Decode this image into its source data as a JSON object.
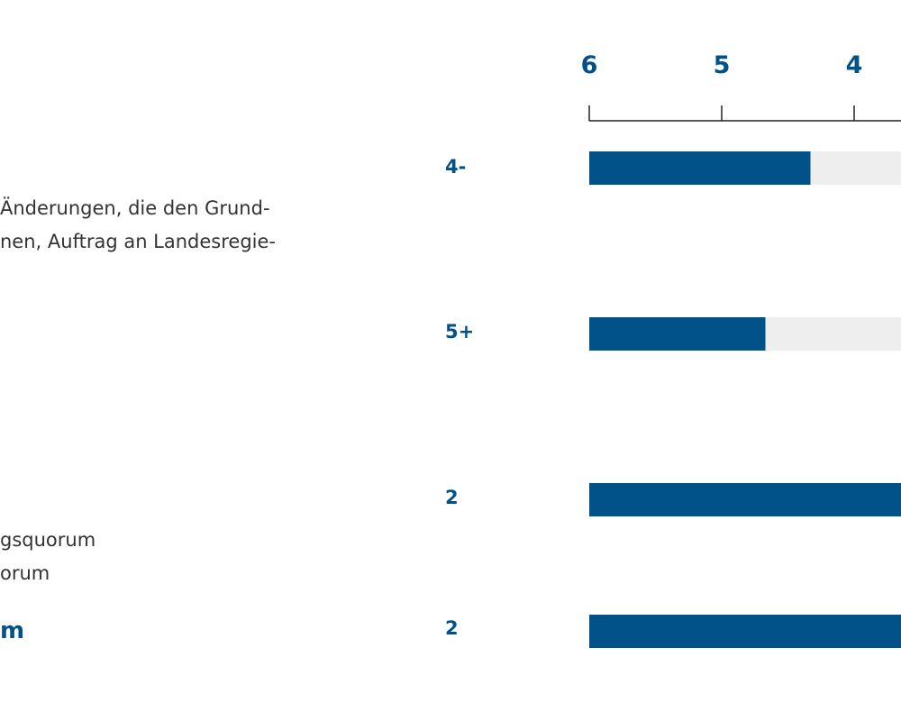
{
  "rows": [
    {
      "grade": "4-",
      "description": [
        "Änderungen, die den Grund-",
        "nen, Auftrag an Landesregie-"
      ]
    },
    {
      "grade": "5+",
      "description": []
    },
    {
      "grade": "2",
      "description": [
        "gsquorum",
        "orum"
      ]
    },
    {
      "grade": "2",
      "description": [
        "m"
      ],
      "is_summary": true
    }
  ],
  "chart_data": {
    "type": "bar",
    "orientation": "horizontal",
    "axis": {
      "ticks": [
        6,
        5,
        4
      ],
      "range": [
        6,
        1
      ],
      "reversed": true
    },
    "categories": [
      "4-",
      "5+",
      "2",
      "2"
    ],
    "values": [
      4.33,
      4.67,
      2,
      2
    ],
    "colors": {
      "bar": "#005288",
      "track": "#eeeeee",
      "tick_text": "#005288",
      "axis": "#222222"
    }
  }
}
